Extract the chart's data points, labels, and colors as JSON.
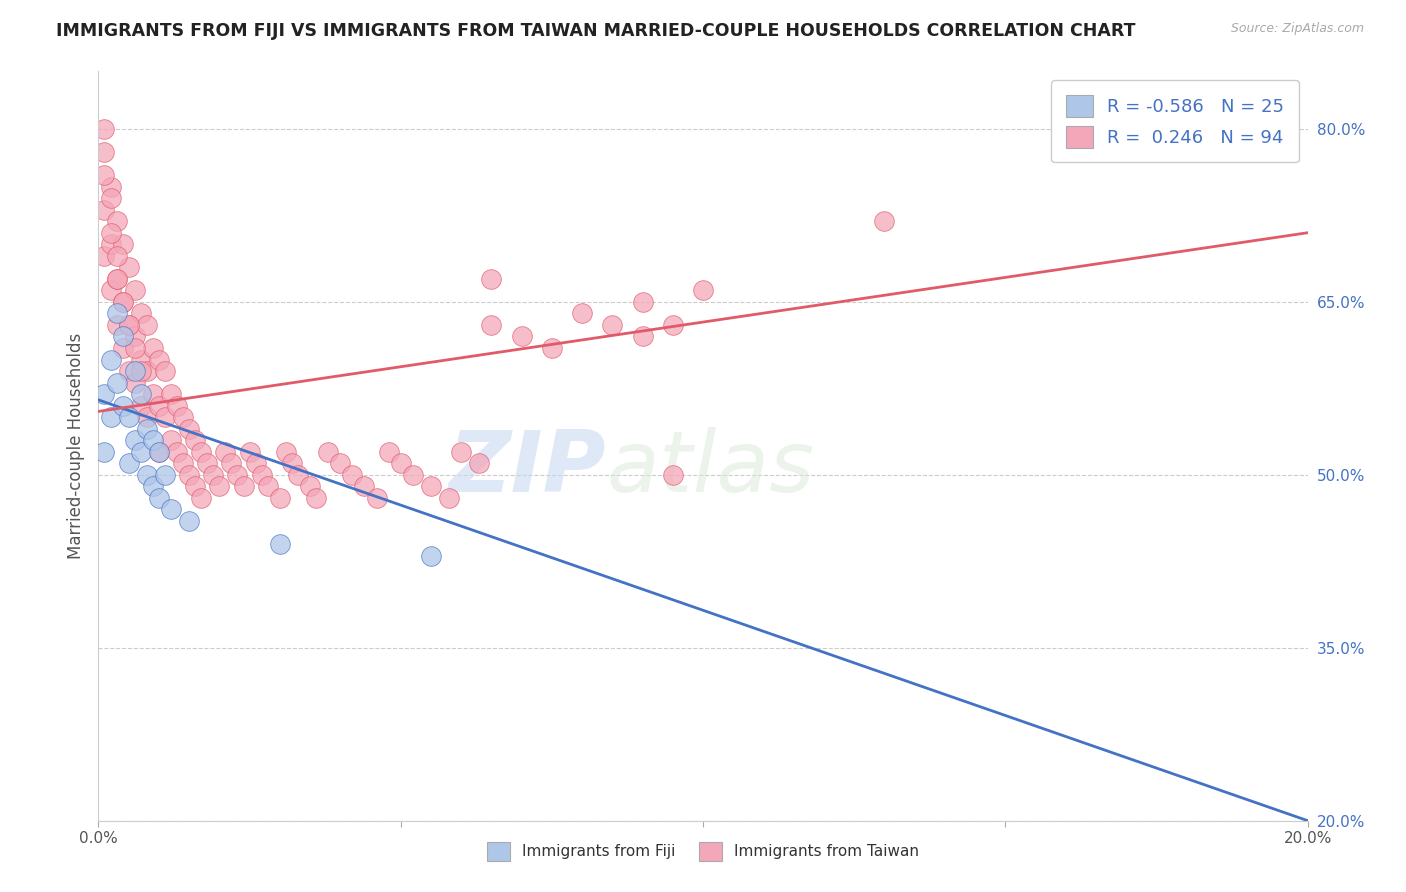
{
  "title": "IMMIGRANTS FROM FIJI VS IMMIGRANTS FROM TAIWAN MARRIED-COUPLE HOUSEHOLDS CORRELATION CHART",
  "source": "Source: ZipAtlas.com",
  "ylabel": "Married-couple Households",
  "xlim": [
    0.0,
    0.2
  ],
  "ylim": [
    0.2,
    0.85
  ],
  "x_ticks": [
    0.0,
    0.05,
    0.1,
    0.15,
    0.2
  ],
  "x_tick_labels": [
    "0.0%",
    "",
    "",
    "",
    "20.0%"
  ],
  "y_tick_labels_right": [
    "80.0%",
    "65.0%",
    "50.0%",
    "35.0%",
    "20.0%"
  ],
  "y_ticks_right": [
    0.8,
    0.65,
    0.5,
    0.35,
    0.2
  ],
  "fiji_color": "#aec6e8",
  "taiwan_color": "#f4a7b9",
  "fiji_line_color": "#4472c4",
  "taiwan_line_color": "#e05a6a",
  "fiji_R": -0.586,
  "fiji_N": 25,
  "taiwan_R": 0.246,
  "taiwan_N": 94,
  "watermark_zip": "ZIP",
  "watermark_atlas": "atlas",
  "fiji_line_x": [
    0.0,
    0.2
  ],
  "fiji_line_y": [
    0.565,
    0.2
  ],
  "taiwan_line_x": [
    0.0,
    0.2
  ],
  "taiwan_line_y": [
    0.555,
    0.71
  ],
  "fiji_scatter_x": [
    0.001,
    0.001,
    0.002,
    0.002,
    0.003,
    0.003,
    0.004,
    0.004,
    0.005,
    0.005,
    0.006,
    0.006,
    0.007,
    0.007,
    0.008,
    0.008,
    0.009,
    0.009,
    0.01,
    0.01,
    0.011,
    0.012,
    0.015,
    0.03,
    0.055
  ],
  "fiji_scatter_y": [
    0.57,
    0.52,
    0.6,
    0.55,
    0.64,
    0.58,
    0.62,
    0.56,
    0.55,
    0.51,
    0.59,
    0.53,
    0.57,
    0.52,
    0.54,
    0.5,
    0.53,
    0.49,
    0.52,
    0.48,
    0.5,
    0.47,
    0.46,
    0.44,
    0.43
  ],
  "taiwan_scatter_x": [
    0.001,
    0.001,
    0.001,
    0.002,
    0.002,
    0.002,
    0.003,
    0.003,
    0.003,
    0.004,
    0.004,
    0.004,
    0.005,
    0.005,
    0.005,
    0.006,
    0.006,
    0.006,
    0.007,
    0.007,
    0.007,
    0.008,
    0.008,
    0.008,
    0.009,
    0.009,
    0.01,
    0.01,
    0.01,
    0.011,
    0.011,
    0.012,
    0.012,
    0.013,
    0.013,
    0.014,
    0.014,
    0.015,
    0.015,
    0.016,
    0.016,
    0.017,
    0.017,
    0.018,
    0.019,
    0.02,
    0.021,
    0.022,
    0.023,
    0.024,
    0.025,
    0.026,
    0.027,
    0.028,
    0.03,
    0.031,
    0.032,
    0.033,
    0.035,
    0.036,
    0.038,
    0.04,
    0.042,
    0.044,
    0.046,
    0.048,
    0.05,
    0.052,
    0.055,
    0.058,
    0.06,
    0.063,
    0.065,
    0.07,
    0.075,
    0.08,
    0.085,
    0.09,
    0.095,
    0.1,
    0.001,
    0.001,
    0.002,
    0.002,
    0.003,
    0.003,
    0.004,
    0.005,
    0.006,
    0.007,
    0.065,
    0.09,
    0.095,
    0.13
  ],
  "taiwan_scatter_y": [
    0.78,
    0.73,
    0.69,
    0.75,
    0.7,
    0.66,
    0.72,
    0.67,
    0.63,
    0.7,
    0.65,
    0.61,
    0.68,
    0.63,
    0.59,
    0.66,
    0.62,
    0.58,
    0.64,
    0.6,
    0.56,
    0.63,
    0.59,
    0.55,
    0.61,
    0.57,
    0.6,
    0.56,
    0.52,
    0.59,
    0.55,
    0.57,
    0.53,
    0.56,
    0.52,
    0.55,
    0.51,
    0.54,
    0.5,
    0.53,
    0.49,
    0.52,
    0.48,
    0.51,
    0.5,
    0.49,
    0.52,
    0.51,
    0.5,
    0.49,
    0.52,
    0.51,
    0.5,
    0.49,
    0.48,
    0.52,
    0.51,
    0.5,
    0.49,
    0.48,
    0.52,
    0.51,
    0.5,
    0.49,
    0.48,
    0.52,
    0.51,
    0.5,
    0.49,
    0.48,
    0.52,
    0.51,
    0.63,
    0.62,
    0.61,
    0.64,
    0.63,
    0.62,
    0.63,
    0.66,
    0.8,
    0.76,
    0.74,
    0.71,
    0.69,
    0.67,
    0.65,
    0.63,
    0.61,
    0.59,
    0.67,
    0.65,
    0.5,
    0.72
  ]
}
